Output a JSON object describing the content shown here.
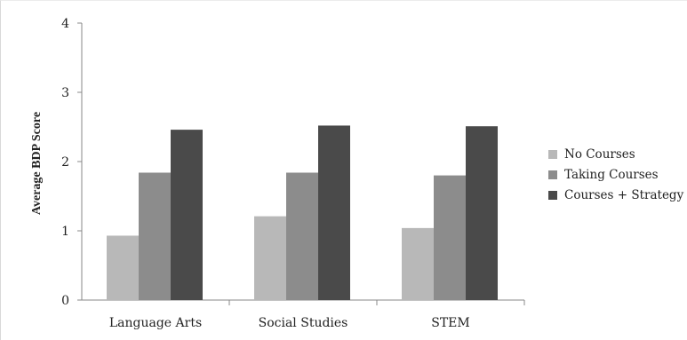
{
  "chart_data": {
    "type": "bar",
    "title": "",
    "xlabel": "",
    "ylabel": "Average BDP Score",
    "ylim": [
      0,
      4
    ],
    "yticks": [
      "0",
      "1",
      "2",
      "3",
      "4"
    ],
    "categories": [
      "Language Arts",
      "Social Studies",
      "STEM"
    ],
    "series": [
      {
        "name": "No Courses",
        "values": [
          0.93,
          1.21,
          1.04
        ],
        "color": "#b8b8b8"
      },
      {
        "name": "Taking Courses",
        "values": [
          1.84,
          1.84,
          1.8
        ],
        "color": "#8c8c8c"
      },
      {
        "name": "Courses + Strategy",
        "values": [
          2.46,
          2.52,
          2.51
        ],
        "color": "#4a4a4a"
      }
    ],
    "legend_position": "right",
    "grid": false
  }
}
